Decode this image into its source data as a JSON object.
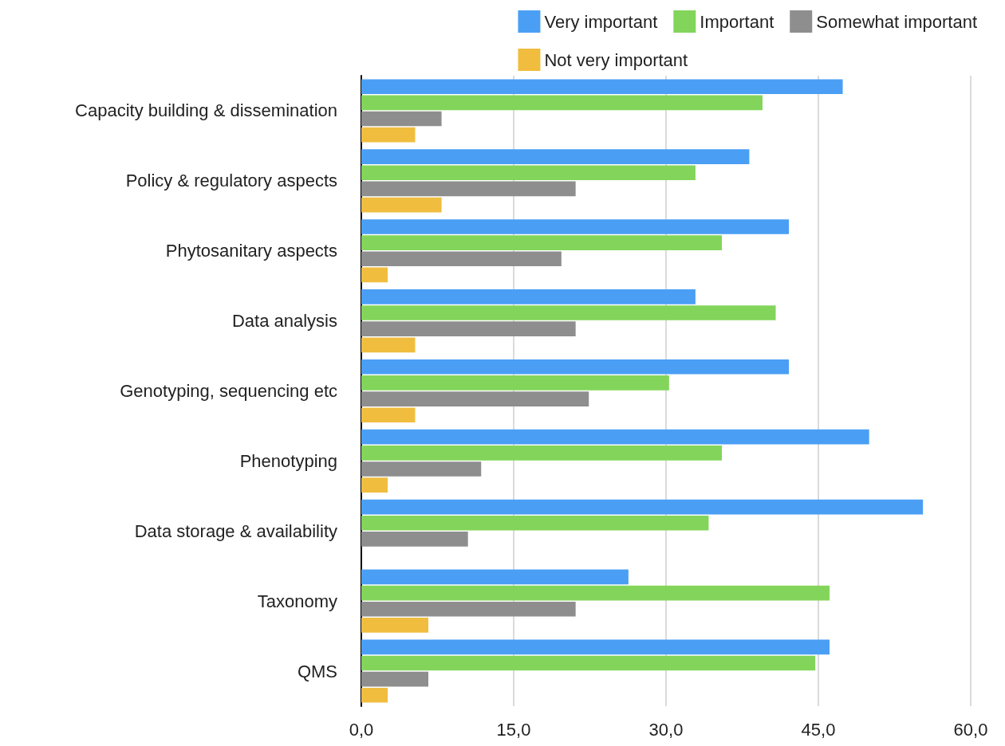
{
  "chart_data": {
    "type": "bar",
    "orientation": "horizontal",
    "categories": [
      "Capacity building & dissemination",
      "Policy & regulatory aspects",
      "Phytosanitary aspects",
      "Data analysis",
      "Genotyping, sequencing etc",
      "Phenotyping",
      "Data storage & availability",
      "Taxonomy",
      "QMS"
    ],
    "series": [
      {
        "name": "Very important",
        "color": "#4a9ff5",
        "values": [
          47.4,
          38.2,
          42.1,
          32.9,
          42.1,
          50.0,
          55.3,
          26.3,
          46.1
        ]
      },
      {
        "name": "Important",
        "color": "#82d55a",
        "values": [
          39.5,
          32.9,
          35.5,
          40.8,
          30.3,
          35.5,
          34.2,
          46.1,
          44.7
        ]
      },
      {
        "name": "Somewhat important",
        "color": "#8e8e8e",
        "values": [
          7.9,
          21.1,
          19.7,
          21.1,
          22.4,
          11.8,
          10.5,
          21.1,
          6.6
        ]
      },
      {
        "name": "Not very important",
        "color": "#f0bd3e",
        "values": [
          5.3,
          7.9,
          2.6,
          5.3,
          5.3,
          2.6,
          0,
          6.6,
          2.6
        ]
      }
    ],
    "xlim": [
      0,
      60
    ],
    "xticks": [
      {
        "value": 0,
        "label": "0,0"
      },
      {
        "value": 15,
        "label": "15,0"
      },
      {
        "value": 30,
        "label": "30,0"
      },
      {
        "value": 45,
        "label": "45,0"
      },
      {
        "value": 60,
        "label": "60,0"
      }
    ],
    "grid": "x",
    "legend": "top right"
  }
}
